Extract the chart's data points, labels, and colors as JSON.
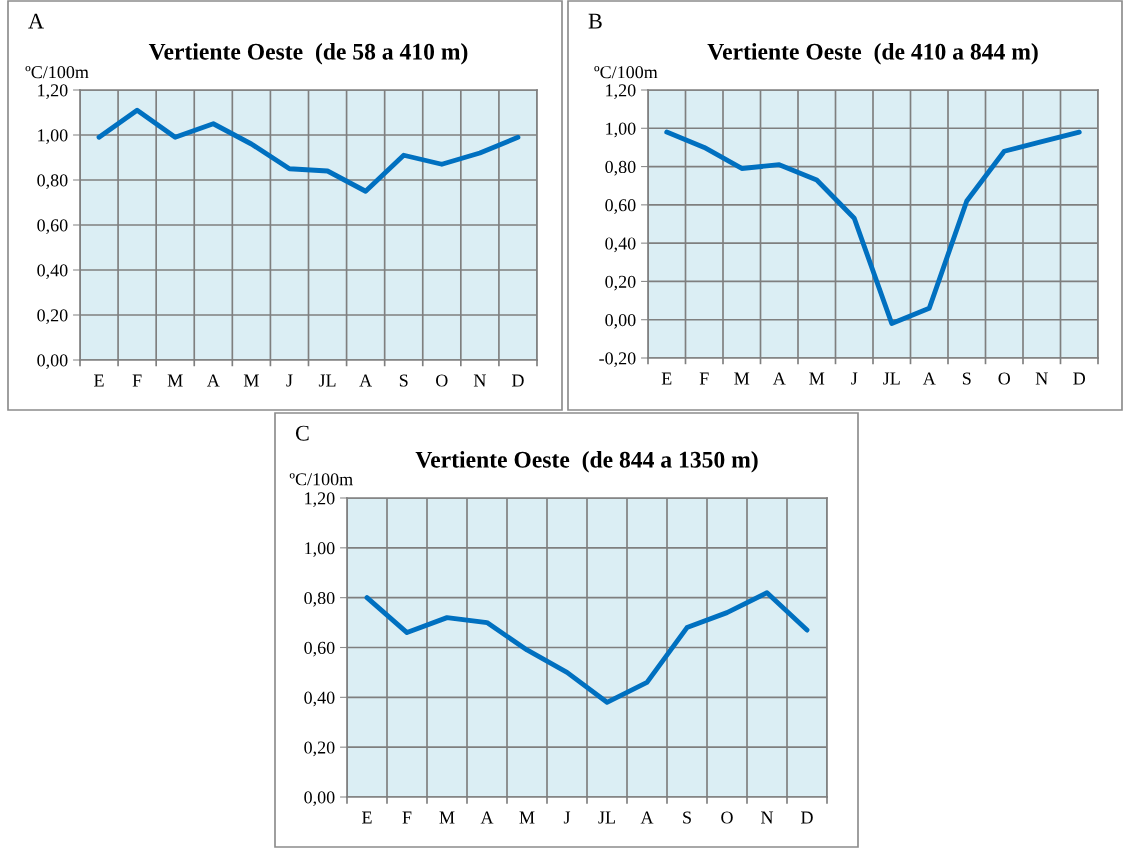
{
  "chart_data": [
    {
      "type": "line",
      "title": "Vertiente Oeste  (de 58 a 410 m)",
      "ylabel": "ºC/100m",
      "annotations": [
        "A"
      ],
      "categories": [
        "E",
        "F",
        "M",
        "A",
        "M",
        "J",
        "JL",
        "A",
        "S",
        "O",
        "N",
        "D"
      ],
      "series": [
        {
          "color": "#0070c0",
          "values": [
            0.99,
            1.11,
            0.99,
            1.05,
            0.96,
            0.85,
            0.84,
            0.75,
            0.91,
            0.87,
            0.92,
            0.99
          ]
        }
      ],
      "ylim": [
        0,
        1.2
      ],
      "yticks": [
        {
          "value": 0,
          "label": "0,00"
        },
        {
          "value": 0.2,
          "label": "0,20"
        },
        {
          "value": 0.4,
          "label": "0,40"
        },
        {
          "value": 0.6,
          "label": "0,60"
        },
        {
          "value": 0.8,
          "label": "0,80"
        },
        {
          "value": 1.0,
          "label": "1,00"
        },
        {
          "value": 1.2,
          "label": "1,20"
        }
      ],
      "grid": true,
      "legend": false,
      "marker": "none",
      "line_style": "solid"
    },
    {
      "type": "line",
      "title": "Vertiente Oeste  (de 410 a 844 m)",
      "ylabel": "ºC/100m",
      "annotations": [
        "B"
      ],
      "categories": [
        "E",
        "F",
        "M",
        "A",
        "M",
        "J",
        "JL",
        "A",
        "S",
        "O",
        "N",
        "D"
      ],
      "series": [
        {
          "color": "#0070c0",
          "values": [
            0.98,
            0.9,
            0.79,
            0.81,
            0.73,
            0.53,
            -0.02,
            0.06,
            0.62,
            0.88,
            0.93,
            0.98
          ]
        }
      ],
      "ylim": [
        -0.2,
        1.2
      ],
      "yticks": [
        {
          "value": -0.2,
          "label": "-0,20"
        },
        {
          "value": 0,
          "label": "0,00"
        },
        {
          "value": 0.2,
          "label": "0,20"
        },
        {
          "value": 0.4,
          "label": "0,40"
        },
        {
          "value": 0.6,
          "label": "0,60"
        },
        {
          "value": 0.8,
          "label": "0,80"
        },
        {
          "value": 1.0,
          "label": "1,00"
        },
        {
          "value": 1.2,
          "label": "1,20"
        }
      ],
      "grid": true,
      "legend": false,
      "marker": "none",
      "line_style": "solid"
    },
    {
      "type": "line",
      "title": "Vertiente Oeste  (de 844 a 1350 m)",
      "ylabel": "ºC/100m",
      "annotations": [
        "C"
      ],
      "categories": [
        "E",
        "F",
        "M",
        "A",
        "M",
        "J",
        "JL",
        "A",
        "S",
        "O",
        "N",
        "D"
      ],
      "series": [
        {
          "color": "#0070c0",
          "values": [
            0.8,
            0.66,
            0.72,
            0.7,
            0.59,
            0.5,
            0.38,
            0.46,
            0.68,
            0.74,
            0.82,
            0.67
          ]
        }
      ],
      "ylim": [
        0,
        1.2
      ],
      "yticks": [
        {
          "value": 0,
          "label": "0,00"
        },
        {
          "value": 0.2,
          "label": "0,20"
        },
        {
          "value": 0.4,
          "label": "0,40"
        },
        {
          "value": 0.6,
          "label": "0,60"
        },
        {
          "value": 0.8,
          "label": "0,80"
        },
        {
          "value": 1.0,
          "label": "1,00"
        },
        {
          "value": 1.2,
          "label": "1,20"
        }
      ],
      "grid": true,
      "legend": false,
      "marker": "none",
      "line_style": "solid"
    }
  ]
}
